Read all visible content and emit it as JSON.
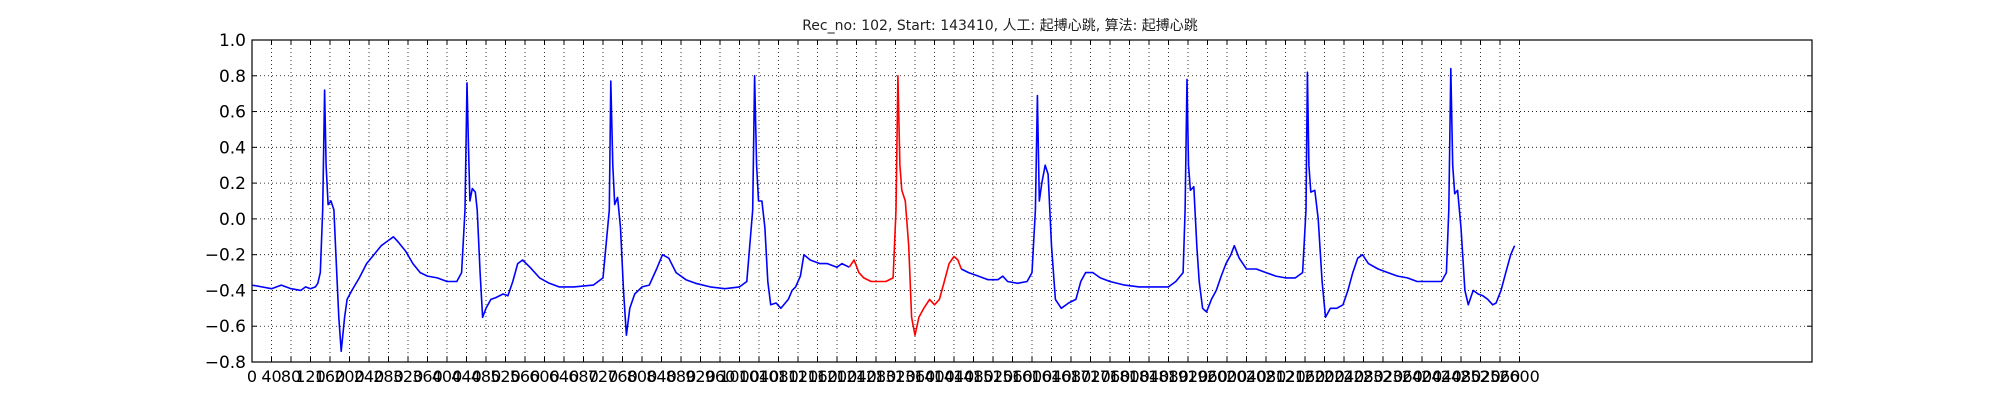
{
  "chart_data": {
    "type": "line",
    "title": "Rec_no: 102, Start: 143410, 人工: 起搏心跳, 算法: 起搏心跳",
    "xlabel": "",
    "ylabel": "",
    "xlim": [
      0,
      3200
    ],
    "ylim": [
      -0.8,
      1.0
    ],
    "yticks": [
      1.0,
      0.8,
      0.6,
      0.4,
      0.2,
      0.0,
      -0.2,
      -0.4,
      -0.6,
      -0.8
    ],
    "ytick_labels": [
      "1.0",
      "0.8",
      "0.6",
      "0.4",
      "0.2",
      "0.0",
      "−0.2",
      "−0.4",
      "−0.6",
      "−0.8"
    ],
    "xticks": [
      0,
      40,
      80,
      120,
      160,
      200,
      240,
      280,
      320,
      360,
      400,
      440,
      480,
      520,
      560,
      600,
      640,
      680,
      720,
      760,
      800,
      840,
      880,
      920,
      960,
      1000,
      1040,
      1080,
      1120,
      1160,
      1200,
      1240,
      1280,
      1320,
      1360,
      1400,
      1440,
      1480,
      1520,
      1560,
      1600,
      1640,
      1680,
      1720,
      1760,
      1800,
      1840,
      1880,
      1920,
      1960,
      2000,
      2040,
      2080,
      2120,
      2160,
      2200,
      2240,
      2280,
      2320,
      2360,
      2400,
      2440,
      2480,
      2520,
      2560,
      2600
    ],
    "xtick_labels": [
      "0",
      "40",
      "80",
      "120",
      "160",
      "200",
      "240",
      "280",
      "320",
      "360",
      "400",
      "440",
      "480",
      "520",
      "560",
      "600",
      "640",
      "680",
      "720",
      "760",
      "800",
      "840",
      "880",
      "920",
      "960",
      "1000",
      "1040",
      "1080",
      "1120",
      "1160",
      "1200",
      "1240",
      "1280",
      "1320",
      "1360",
      "1400",
      "1440",
      "1480",
      "1520",
      "1560",
      "1600",
      "1640",
      "1680",
      "1720",
      "1760",
      "1800",
      "1840",
      "1880",
      "1920",
      "1960",
      "2000",
      "2040",
      "2080",
      "2120",
      "2160",
      "2200",
      "2240",
      "2280",
      "2320",
      "2360",
      "2400",
      "2440",
      "2480",
      "2520",
      "2560",
      "2600"
    ],
    "grid": true,
    "grid_style": "dotted",
    "series": [
      {
        "color": "#0000ff",
        "segments": [
          [
            [
              0,
              -0.37
            ],
            [
              20,
              -0.38
            ],
            [
              40,
              -0.39
            ],
            [
              60,
              -0.37
            ],
            [
              80,
              -0.39
            ],
            [
              100,
              -0.4
            ],
            [
              110,
              -0.38
            ],
            [
              120,
              -0.39
            ],
            [
              130,
              -0.38
            ],
            [
              135,
              -0.36
            ],
            [
              140,
              -0.3
            ],
            [
              145,
              0.05
            ],
            [
              149,
              0.72
            ],
            [
              152,
              0.3
            ],
            [
              156,
              0.08
            ],
            [
              162,
              0.1
            ],
            [
              168,
              0.05
            ],
            [
              172,
              -0.2
            ],
            [
              178,
              -0.55
            ],
            [
              183,
              -0.74
            ],
            [
              190,
              -0.55
            ],
            [
              195,
              -0.45
            ],
            [
              205,
              -0.4
            ],
            [
              220,
              -0.33
            ],
            [
              235,
              -0.25
            ],
            [
              250,
              -0.2
            ],
            [
              265,
              -0.15
            ],
            [
              280,
              -0.12
            ],
            [
              290,
              -0.1
            ],
            [
              300,
              -0.13
            ],
            [
              315,
              -0.18
            ],
            [
              330,
              -0.25
            ],
            [
              345,
              -0.3
            ],
            [
              360,
              -0.32
            ],
            [
              380,
              -0.33
            ],
            [
              400,
              -0.35
            ],
            [
              420,
              -0.35
            ],
            [
              430,
              -0.3
            ],
            [
              437,
              0.05
            ],
            [
              441,
              0.76
            ],
            [
              444,
              0.4
            ],
            [
              447,
              0.1
            ],
            [
              452,
              0.17
            ],
            [
              458,
              0.15
            ],
            [
              462,
              0.05
            ],
            [
              468,
              -0.3
            ],
            [
              473,
              -0.55
            ],
            [
              480,
              -0.5
            ],
            [
              490,
              -0.45
            ],
            [
              500,
              -0.44
            ],
            [
              515,
              -0.42
            ],
            [
              525,
              -0.43
            ],
            [
              535,
              -0.35
            ],
            [
              545,
              -0.25
            ],
            [
              555,
              -0.23
            ],
            [
              570,
              -0.27
            ],
            [
              590,
              -0.33
            ],
            [
              610,
              -0.36
            ],
            [
              630,
              -0.38
            ],
            [
              660,
              -0.38
            ],
            [
              700,
              -0.37
            ],
            [
              720,
              -0.33
            ],
            [
              733,
              0.05
            ],
            [
              736,
              0.77
            ],
            [
              740,
              0.3
            ],
            [
              744,
              0.08
            ],
            [
              750,
              0.12
            ],
            [
              756,
              -0.05
            ],
            [
              762,
              -0.4
            ],
            [
              768,
              -0.65
            ],
            [
              775,
              -0.5
            ],
            [
              785,
              -0.42
            ],
            [
              800,
              -0.38
            ],
            [
              815,
              -0.37
            ],
            [
              830,
              -0.28
            ],
            [
              842,
              -0.2
            ],
            [
              855,
              -0.22
            ],
            [
              870,
              -0.3
            ],
            [
              890,
              -0.34
            ],
            [
              910,
              -0.36
            ],
            [
              940,
              -0.38
            ],
            [
              970,
              -0.39
            ],
            [
              1000,
              -0.38
            ],
            [
              1015,
              -0.35
            ],
            [
              1027,
              0.05
            ],
            [
              1031,
              0.8
            ],
            [
              1035,
              0.3
            ],
            [
              1039,
              0.1
            ],
            [
              1046,
              0.1
            ],
            [
              1052,
              -0.05
            ],
            [
              1058,
              -0.35
            ],
            [
              1064,
              -0.48
            ],
            [
              1075,
              -0.47
            ],
            [
              1085,
              -0.5
            ],
            [
              1100,
              -0.45
            ],
            [
              1108,
              -0.4
            ],
            [
              1115,
              -0.38
            ],
            [
              1125,
              -0.32
            ],
            [
              1132,
              -0.2
            ],
            [
              1145,
              -0.23
            ],
            [
              1165,
              -0.25
            ],
            [
              1180,
              -0.25
            ],
            [
              1200,
              -0.27
            ],
            [
              1210,
              -0.25
            ],
            [
              1225,
              -0.27
            ]
          ]
        ]
      },
      {
        "color": "#ff0000",
        "segments": [
          [
            [
              1225,
              -0.27
            ],
            [
              1235,
              -0.23
            ],
            [
              1245,
              -0.3
            ],
            [
              1255,
              -0.33
            ],
            [
              1270,
              -0.35
            ],
            [
              1300,
              -0.35
            ],
            [
              1315,
              -0.33
            ],
            [
              1321,
              0.05
            ],
            [
              1325,
              0.8
            ],
            [
              1329,
              0.3
            ],
            [
              1333,
              0.16
            ],
            [
              1340,
              0.1
            ],
            [
              1347,
              -0.15
            ],
            [
              1353,
              -0.55
            ],
            [
              1360,
              -0.65
            ],
            [
              1368,
              -0.55
            ],
            [
              1378,
              -0.5
            ],
            [
              1390,
              -0.45
            ],
            [
              1400,
              -0.48
            ],
            [
              1410,
              -0.45
            ],
            [
              1420,
              -0.35
            ],
            [
              1430,
              -0.25
            ],
            [
              1440,
              -0.21
            ],
            [
              1448,
              -0.23
            ],
            [
              1455,
              -0.28
            ]
          ]
        ]
      },
      {
        "color": "#0000ff",
        "segments": [
          [
            [
              1455,
              -0.28
            ],
            [
              1470,
              -0.3
            ],
            [
              1490,
              -0.32
            ],
            [
              1510,
              -0.34
            ],
            [
              1530,
              -0.34
            ],
            [
              1540,
              -0.32
            ],
            [
              1550,
              -0.35
            ],
            [
              1570,
              -0.36
            ],
            [
              1590,
              -0.35
            ],
            [
              1600,
              -0.3
            ],
            [
              1607,
              0.05
            ],
            [
              1611,
              0.69
            ],
            [
              1615,
              0.1
            ],
            [
              1620,
              0.2
            ],
            [
              1627,
              0.3
            ],
            [
              1633,
              0.25
            ],
            [
              1640,
              -0.15
            ],
            [
              1648,
              -0.45
            ],
            [
              1660,
              -0.5
            ],
            [
              1675,
              -0.47
            ],
            [
              1690,
              -0.45
            ],
            [
              1700,
              -0.35
            ],
            [
              1710,
              -0.3
            ],
            [
              1725,
              -0.3
            ],
            [
              1740,
              -0.33
            ],
            [
              1760,
              -0.35
            ],
            [
              1790,
              -0.37
            ],
            [
              1820,
              -0.38
            ],
            [
              1850,
              -0.38
            ],
            [
              1880,
              -0.38
            ],
            [
              1895,
              -0.35
            ],
            [
              1910,
              -0.3
            ],
            [
              1914,
              0.05
            ],
            [
              1918,
              0.78
            ],
            [
              1921,
              0.3
            ],
            [
              1925,
              0.16
            ],
            [
              1932,
              0.18
            ],
            [
              1938,
              -0.15
            ],
            [
              1943,
              -0.35
            ],
            [
              1950,
              -0.5
            ],
            [
              1958,
              -0.52
            ],
            [
              1968,
              -0.45
            ],
            [
              1978,
              -0.4
            ],
            [
              1988,
              -0.32
            ],
            [
              1998,
              -0.25
            ],
            [
              2008,
              -0.2
            ],
            [
              2015,
              -0.15
            ],
            [
              2025,
              -0.22
            ],
            [
              2040,
              -0.28
            ],
            [
              2060,
              -0.28
            ],
            [
              2080,
              -0.3
            ],
            [
              2100,
              -0.32
            ],
            [
              2120,
              -0.33
            ],
            [
              2140,
              -0.33
            ],
            [
              2155,
              -0.3
            ],
            [
              2162,
              0.05
            ],
            [
              2165,
              0.82
            ],
            [
              2168,
              0.3
            ],
            [
              2172,
              0.15
            ],
            [
              2180,
              0.16
            ],
            [
              2187,
              0.0
            ],
            [
              2195,
              -0.35
            ],
            [
              2202,
              -0.55
            ],
            [
              2212,
              -0.5
            ],
            [
              2225,
              -0.5
            ],
            [
              2238,
              -0.48
            ],
            [
              2248,
              -0.4
            ],
            [
              2258,
              -0.3
            ],
            [
              2268,
              -0.22
            ],
            [
              2278,
              -0.2
            ],
            [
              2290,
              -0.25
            ],
            [
              2310,
              -0.28
            ],
            [
              2330,
              -0.3
            ],
            [
              2350,
              -0.32
            ],
            [
              2370,
              -0.33
            ],
            [
              2390,
              -0.35
            ],
            [
              2410,
              -0.35
            ],
            [
              2440,
              -0.35
            ],
            [
              2450,
              -0.3
            ],
            [
              2455,
              0.05
            ],
            [
              2459,
              0.84
            ],
            [
              2463,
              0.3
            ],
            [
              2467,
              0.14
            ],
            [
              2473,
              0.16
            ],
            [
              2480,
              -0.05
            ],
            [
              2488,
              -0.4
            ],
            [
              2495,
              -0.48
            ],
            [
              2505,
              -0.4
            ],
            [
              2515,
              -0.42
            ],
            [
              2525,
              -0.43
            ],
            [
              2535,
              -0.45
            ],
            [
              2545,
              -0.48
            ],
            [
              2552,
              -0.47
            ],
            [
              2562,
              -0.4
            ],
            [
              2572,
              -0.3
            ],
            [
              2582,
              -0.2
            ],
            [
              2590,
              -0.15
            ]
          ]
        ]
      }
    ]
  }
}
